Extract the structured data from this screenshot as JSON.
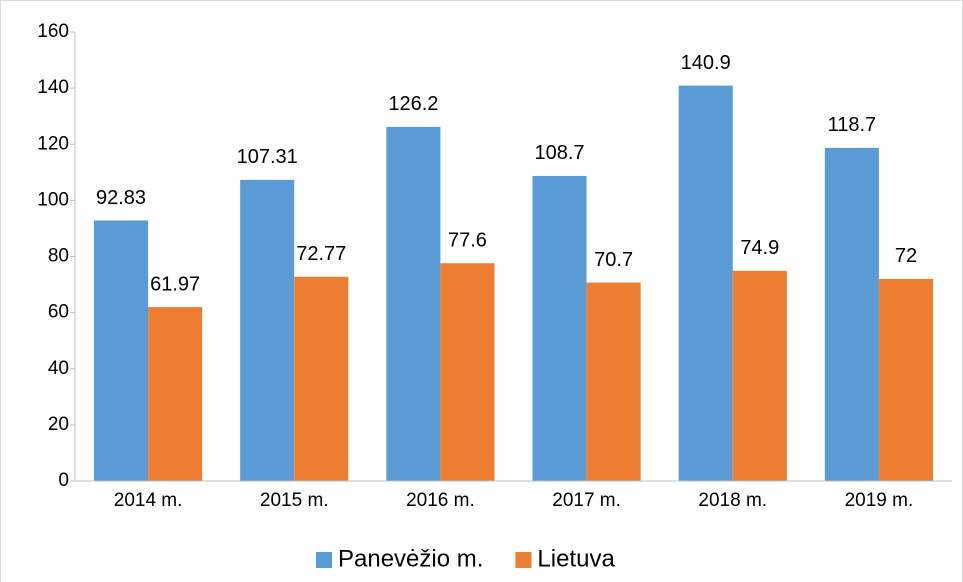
{
  "chart_data": {
    "type": "bar",
    "categories": [
      "2014 m.",
      "2015 m.",
      "2016 m.",
      "2017 m.",
      "2018 m.",
      "2019 m."
    ],
    "series": [
      {
        "name": "Panevėžio m.",
        "color": "#5b9bd5",
        "values": [
          92.83,
          107.31,
          126.2,
          108.7,
          140.9,
          118.7
        ]
      },
      {
        "name": "Lietuva",
        "color": "#ed7d31",
        "values": [
          61.97,
          72.77,
          77.6,
          70.7,
          74.9,
          72
        ]
      }
    ],
    "ylim": [
      0,
      160
    ],
    "yticks": [
      0,
      20,
      40,
      60,
      80,
      100,
      120,
      140,
      160
    ],
    "grid": false,
    "legend": "bottom"
  }
}
